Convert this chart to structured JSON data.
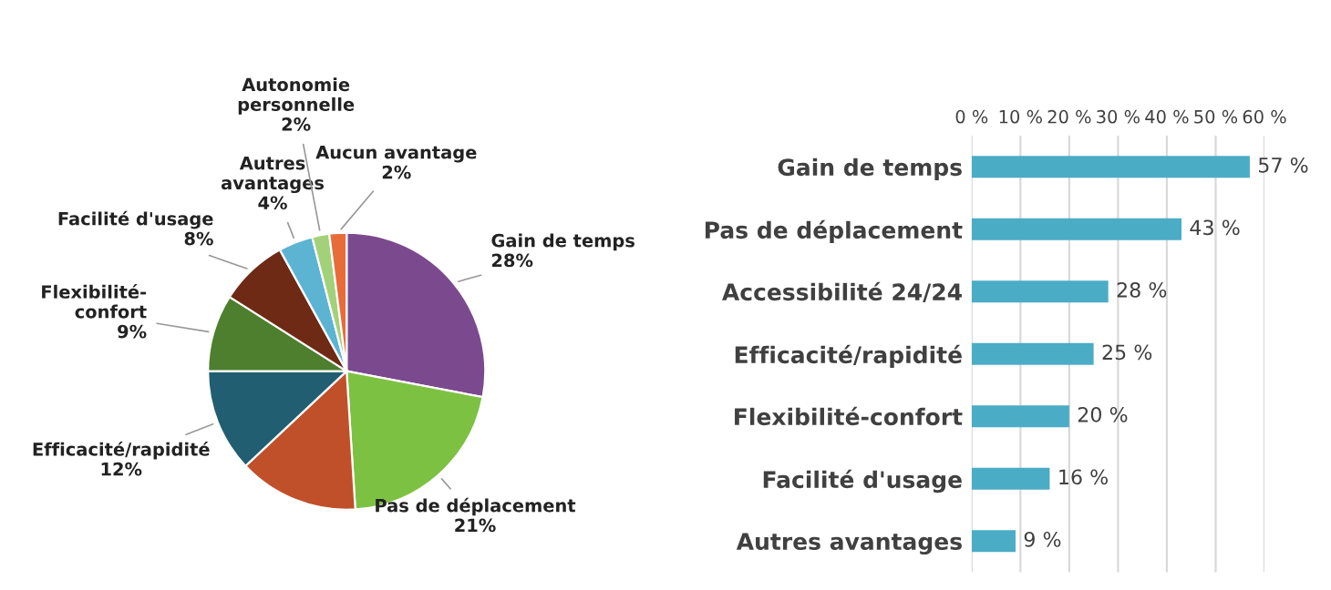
{
  "chart_data": [
    {
      "type": "pie",
      "categories": [
        "Gain de temps",
        "Pas de déplacement",
        null,
        "Efficacité/rapidité",
        "Flexibilité-\nconfort",
        "Facilité d'usage",
        "Autres\navantages",
        "Autonomie\npersonnelle",
        "Aucun avantage"
      ],
      "values": [
        28,
        21,
        14,
        12,
        9,
        8,
        4,
        2,
        2
      ],
      "value_labels": [
        "28%",
        "21%",
        null,
        "12%",
        "9%",
        "8%",
        "4%",
        "2%",
        "2%"
      ],
      "colors": [
        "#7b4a8e",
        "#7dc142",
        "#c0502a",
        "#215e72",
        "#4d7f2e",
        "#6e2a14",
        "#5cb4d2",
        "#a3d17a",
        "#e86b3a"
      ]
    },
    {
      "type": "bar",
      "orientation": "horizontal",
      "categories": [
        "Gain de temps",
        "Pas de déplacement",
        "Accessibilité 24/24",
        "Efficacité/rapidité",
        "Flexibilité-confort",
        "Facilité d'usage",
        "Autres avantages"
      ],
      "values": [
        57,
        43,
        28,
        25,
        20,
        16,
        9
      ],
      "value_labels": [
        "57 %",
        "43 %",
        "28 %",
        "25 %",
        "20 %",
        "16 %",
        "9 %"
      ],
      "color": "#4bacc6",
      "xlim": [
        0,
        60
      ],
      "xticks": [
        {
          "value": 0,
          "label": "0 %"
        },
        {
          "value": 10,
          "label": "10 %"
        },
        {
          "value": 20,
          "label": "20 %"
        },
        {
          "value": 30,
          "label": "30 %"
        },
        {
          "value": 40,
          "label": "40 %"
        },
        {
          "value": 50,
          "label": "50 %"
        },
        {
          "value": 60,
          "label": "60 %"
        }
      ],
      "grid": "x",
      "legend": false
    }
  ]
}
